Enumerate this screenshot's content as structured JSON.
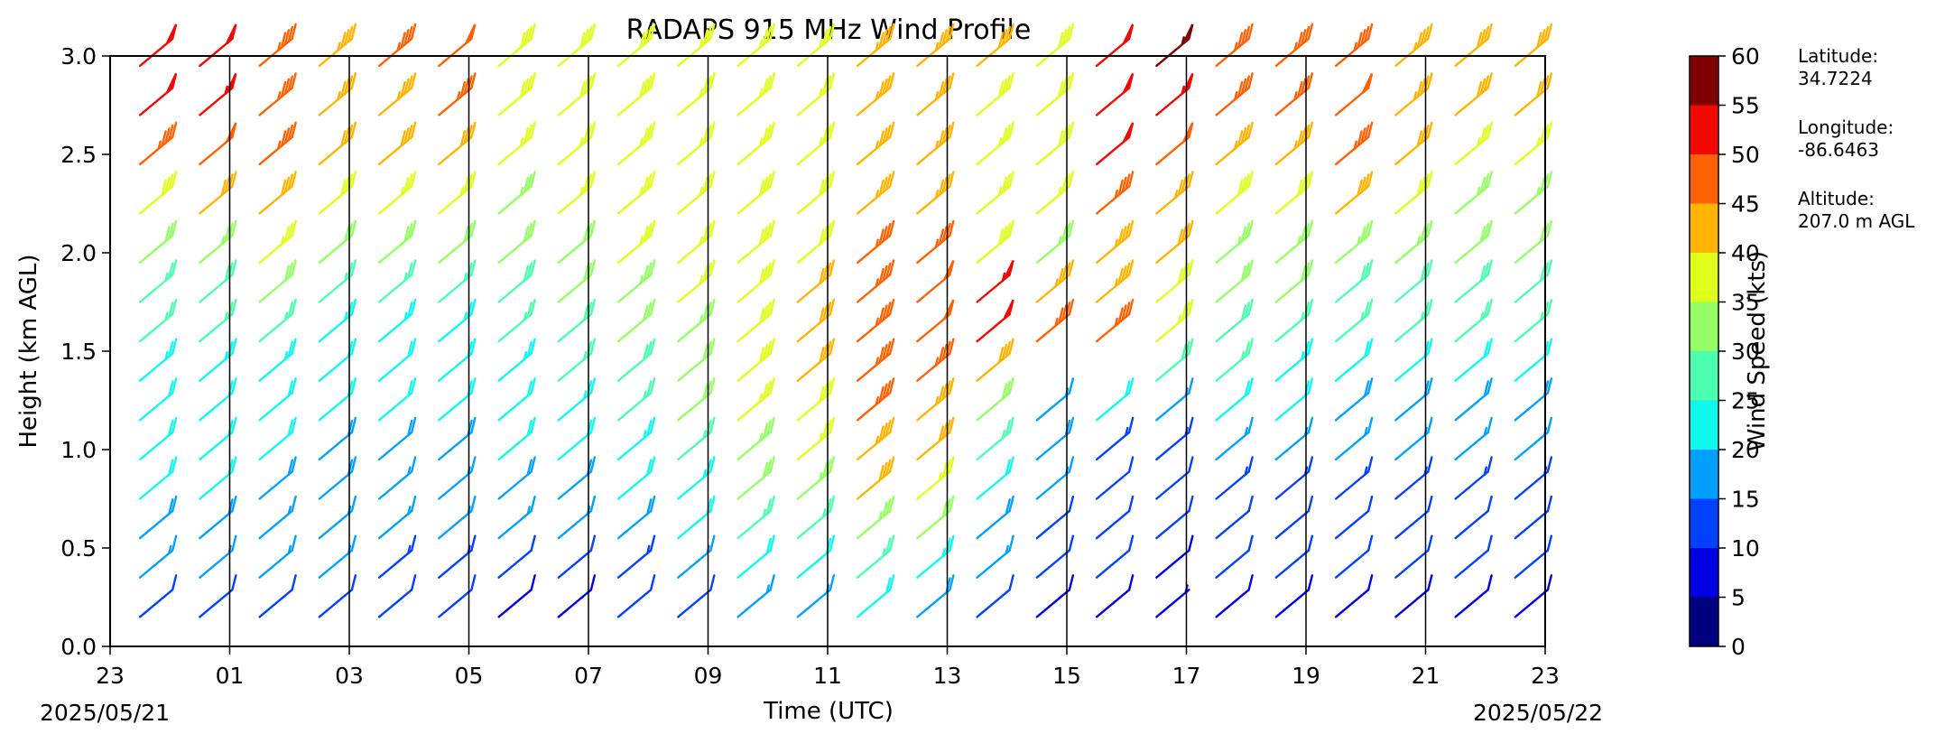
{
  "chart_data": {
    "type": "wind_barbs",
    "title": "RADAPS 915 MHz Wind Profile",
    "xlabel": "Time (UTC)",
    "ylabel": "Height (km AGL)",
    "x_ticks": [
      "23",
      "01",
      "03",
      "05",
      "07",
      "09",
      "11",
      "13",
      "15",
      "17",
      "19",
      "21",
      "23"
    ],
    "x_tick_hours": [
      23,
      25,
      27,
      29,
      31,
      33,
      35,
      37,
      39,
      41,
      43,
      45,
      47
    ],
    "xlim_hours": [
      23,
      47
    ],
    "start_date_label": "2025/05/21",
    "end_date_label": "2025/05/22",
    "y_ticks": [
      "0.0",
      "0.5",
      "1.0",
      "1.5",
      "2.0",
      "2.5",
      "3.0"
    ],
    "ylim": [
      0,
      3
    ],
    "profile_times_hours": [
      23.5,
      24.5,
      25.5,
      26.5,
      27.5,
      28.5,
      29.5,
      30.5,
      31.5,
      32.5,
      33.5,
      34.5,
      35.5,
      36.5,
      37.5,
      38.5,
      39.5,
      40.5,
      41.5,
      42.5,
      43.5,
      44.5,
      45.5,
      46.5
    ],
    "heights_km": [
      0.15,
      0.35,
      0.55,
      0.75,
      0.95,
      1.15,
      1.35,
      1.55,
      1.75,
      1.95,
      2.2,
      2.45,
      2.7,
      2.95
    ],
    "wind_speed_kts": [
      [
        12,
        16,
        19,
        20,
        21,
        22,
        23,
        25,
        27,
        30,
        38,
        45,
        52,
        50
      ],
      [
        12,
        16,
        19,
        20,
        21,
        22,
        23,
        26,
        29,
        33,
        40,
        48,
        53,
        52
      ],
      [
        12,
        15,
        17,
        19,
        20,
        22,
        24,
        26,
        30,
        35,
        42,
        45,
        46,
        46
      ],
      [
        12,
        15,
        17,
        18,
        19,
        20,
        22,
        24,
        27,
        32,
        38,
        42,
        43,
        44
      ],
      [
        11,
        14,
        16,
        17,
        18,
        20,
        22,
        24,
        27,
        30,
        35,
        40,
        44,
        46
      ],
      [
        10,
        13,
        15,
        17,
        19,
        21,
        22,
        24,
        27,
        30,
        36,
        42,
        46,
        48
      ],
      [
        9,
        12,
        15,
        18,
        20,
        22,
        24,
        26,
        28,
        30,
        33,
        36,
        38,
        38
      ],
      [
        9,
        12,
        15,
        18,
        21,
        23,
        25,
        28,
        30,
        32,
        35,
        37,
        38,
        38
      ],
      [
        10,
        14,
        18,
        22,
        24,
        26,
        28,
        30,
        33,
        35,
        36,
        37,
        38,
        38
      ],
      [
        12,
        17,
        21,
        24,
        27,
        30,
        32,
        33,
        35,
        36,
        36,
        37,
        37,
        37
      ],
      [
        17,
        22,
        27,
        31,
        34,
        36,
        38,
        38,
        39,
        39,
        38,
        37,
        37,
        37
      ],
      [
        17,
        22,
        27,
        33,
        37,
        39,
        40,
        41,
        40,
        39,
        38,
        37,
        37,
        37
      ],
      [
        20,
        27,
        34,
        40,
        44,
        45,
        45,
        45,
        46,
        45,
        44,
        44,
        43,
        43
      ],
      [
        18,
        24,
        30,
        36,
        40,
        43,
        46,
        48,
        48,
        46,
        44,
        44,
        43,
        43
      ],
      [
        12,
        17,
        18,
        22,
        26,
        32,
        40,
        52,
        54,
        38,
        36,
        36,
        38,
        40
      ],
      [
        8,
        10,
        12,
        15,
        18,
        16,
        null,
        45,
        44,
        33,
        35,
        38,
        38,
        38
      ],
      [
        8,
        10,
        10,
        12,
        14,
        20,
        null,
        45,
        44,
        44,
        46,
        50,
        52,
        52
      ],
      [
        6,
        8,
        10,
        12,
        14,
        17,
        28,
        35,
        38,
        40,
        44,
        48,
        54,
        56
      ],
      [
        9,
        11,
        12,
        14,
        17,
        21,
        25,
        28,
        30,
        34,
        38,
        44,
        46,
        46
      ],
      [
        9,
        11,
        12,
        14,
        17,
        20,
        24,
        27,
        30,
        34,
        38,
        44,
        46,
        46
      ],
      [
        9,
        11,
        12,
        14,
        16,
        19,
        22,
        25,
        28,
        33,
        40,
        45,
        48,
        47
      ],
      [
        9,
        11,
        12,
        14,
        16,
        19,
        22,
        25,
        28,
        33,
        38,
        42,
        44,
        44
      ],
      [
        9,
        11,
        12,
        14,
        16,
        19,
        22,
        25,
        28,
        31,
        34,
        37,
        40,
        41
      ],
      [
        9,
        11,
        12,
        14,
        16,
        19,
        22,
        25,
        28,
        31,
        34,
        37,
        40,
        41
      ]
    ],
    "colorbar": {
      "label": "Wind Speed (kts)",
      "ticks": [
        "0",
        "5",
        "10",
        "15",
        "20",
        "25",
        "30",
        "35",
        "40",
        "45",
        "50",
        "55",
        "60"
      ],
      "boundaries": [
        0,
        5,
        10,
        15,
        20,
        25,
        30,
        35,
        40,
        45,
        50,
        55,
        60
      ],
      "colors": [
        "#00007f",
        "#0000e3",
        "#0041ff",
        "#00a0ff",
        "#0ff8ee",
        "#4cffb0",
        "#95ff66",
        "#e0ff1b",
        "#ffb400",
        "#ff6200",
        "#f10800",
        "#7f0000"
      ]
    },
    "grid": "vertical lines at hour ticks",
    "legend": "colorbar right"
  },
  "info": {
    "latitude_label": "Latitude:",
    "latitude_value": "34.7224",
    "longitude_label": "Longitude:",
    "longitude_value": "-86.6463",
    "altitude_label": "Altitude:",
    "altitude_value": "207.0 m AGL"
  }
}
